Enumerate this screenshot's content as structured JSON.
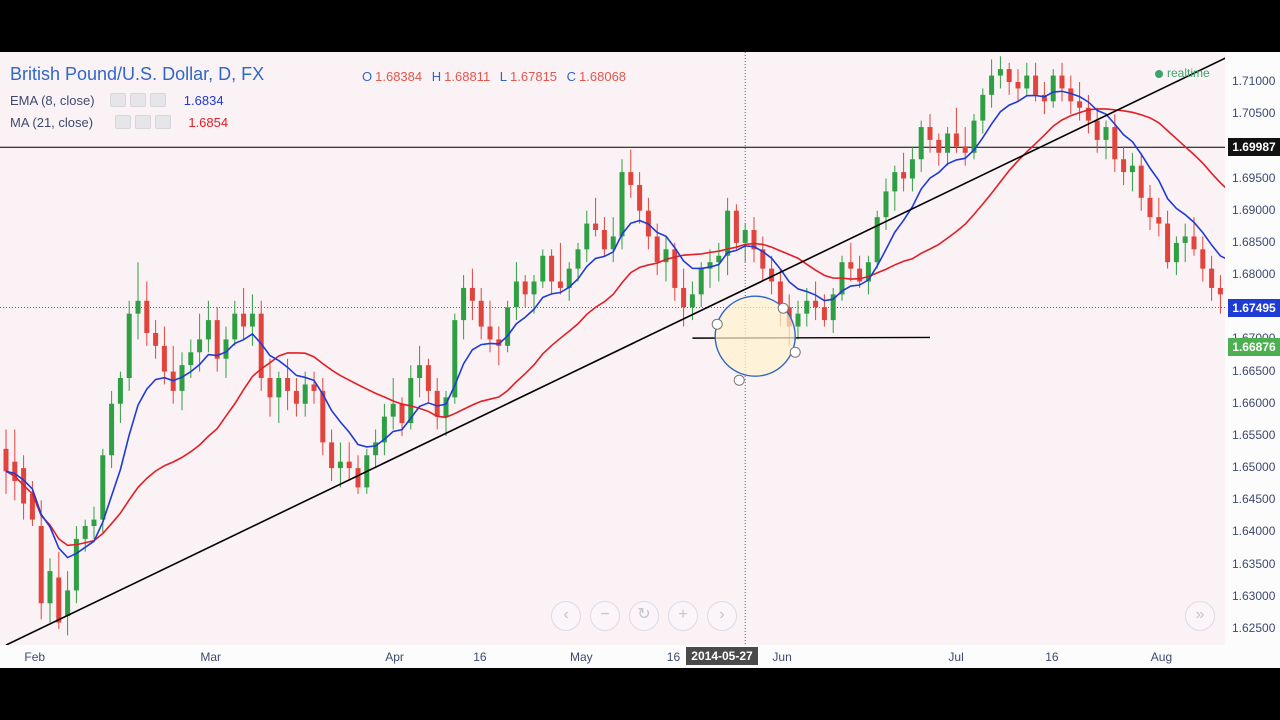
{
  "header": {
    "title": "British Pound/U.S. Dollar, D, FX",
    "ohlc": [
      {
        "key": "O",
        "value": "1.68384"
      },
      {
        "key": "H",
        "value": "1.68811"
      },
      {
        "key": "L",
        "value": "1.67815"
      },
      {
        "key": "C",
        "value": "1.68068"
      }
    ]
  },
  "indicators": [
    {
      "label": "EMA (8, close)",
      "value": "1.6834",
      "color": "#1f3bd6"
    },
    {
      "label": "MA (21, close)",
      "value": "1.6854",
      "color": "#e01f26"
    }
  ],
  "status": {
    "realtime_label": "realtime"
  },
  "price_tags": [
    {
      "label": "1.69987",
      "price": 1.69987,
      "bg": "#111111"
    },
    {
      "label": "1.67495",
      "price": 1.67495,
      "bg": "#1f3bd6"
    },
    {
      "label": "1.66876",
      "price": 1.66876,
      "bg": "#4caf50"
    }
  ],
  "cursor": {
    "date_label": "2014-05-27"
  },
  "nav_buttons": [
    {
      "name": "scroll-left-button",
      "glyph": "‹"
    },
    {
      "name": "zoom-out-button",
      "glyph": "−"
    },
    {
      "name": "reset-button",
      "glyph": "↻"
    },
    {
      "name": "zoom-in-button",
      "glyph": "+"
    },
    {
      "name": "scroll-right-button",
      "glyph": "›"
    },
    {
      "name": "go-to-realtime-button",
      "glyph": "»"
    }
  ],
  "colors": {
    "up": "#2ea043",
    "down": "#e0443c",
    "ema": "#1f3bd6",
    "ma": "#e01f26",
    "trendline": "#000000"
  },
  "chart_data": {
    "type": "candlestick",
    "ylim": [
      1.622,
      1.7135
    ],
    "y_ticks": [
      1.625,
      1.63,
      1.635,
      1.64,
      1.645,
      1.65,
      1.655,
      1.66,
      1.665,
      1.67,
      1.675,
      1.68,
      1.685,
      1.69,
      1.695,
      1.7,
      1.705,
      1.71
    ],
    "y_tick_labels": [
      "1.62500",
      "1.63000",
      "1.63500",
      "1.64000",
      "1.64500",
      "1.65000",
      "1.65500",
      "1.66000",
      "1.66500",
      "1.67000",
      "1.67500",
      "1.68000",
      "1.68500",
      "1.69000",
      "1.69500",
      "1.70000",
      "1.70500",
      "1.71000"
    ],
    "x_tick_labels": [
      {
        "label": "Feb",
        "bar": 3
      },
      {
        "label": "Mar",
        "bar": 23
      },
      {
        "label": "Apr",
        "bar": 44
      },
      {
        "label": "16",
        "bar": 54
      },
      {
        "label": "May",
        "bar": 65
      },
      {
        "label": "16",
        "bar": 76
      },
      {
        "label": "Jun",
        "bar": 88
      },
      {
        "label": "Jul",
        "bar": 108
      },
      {
        "label": "16",
        "bar": 119
      },
      {
        "label": "Aug",
        "bar": 131
      }
    ],
    "horizontal_lines": [
      1.69987,
      1.67495
    ],
    "trendline": {
      "from": {
        "bar": 0,
        "price": 1.6225
      },
      "to": {
        "bar": 139,
        "price": 1.714
      }
    },
    "drawn_segment": {
      "from": {
        "bar": 78,
        "price": 1.6702
      },
      "to": {
        "bar": 105,
        "price": 1.6703
      }
    },
    "cursor_bar": 84,
    "ohlc": [
      [
        1.653,
        1.656,
        1.646,
        1.6495
      ],
      [
        1.651,
        1.656,
        1.645,
        1.648
      ],
      [
        1.65,
        1.652,
        1.642,
        1.6445
      ],
      [
        1.646,
        1.648,
        1.641,
        1.642
      ],
      [
        1.641,
        1.645,
        1.6265,
        1.629
      ],
      [
        1.629,
        1.636,
        1.626,
        1.634
      ],
      [
        1.633,
        1.637,
        1.625,
        1.626
      ],
      [
        1.627,
        1.634,
        1.624,
        1.631
      ],
      [
        1.631,
        1.641,
        1.629,
        1.639
      ],
      [
        1.639,
        1.642,
        1.637,
        1.641
      ],
      [
        1.641,
        1.644,
        1.639,
        1.642
      ],
      [
        1.642,
        1.653,
        1.64,
        1.652
      ],
      [
        1.652,
        1.662,
        1.65,
        1.66
      ],
      [
        1.66,
        1.665,
        1.657,
        1.664
      ],
      [
        1.664,
        1.676,
        1.662,
        1.674
      ],
      [
        1.674,
        1.682,
        1.67,
        1.676
      ],
      [
        1.676,
        1.679,
        1.669,
        1.671
      ],
      [
        1.671,
        1.673,
        1.667,
        1.669
      ],
      [
        1.669,
        1.672,
        1.663,
        1.665
      ],
      [
        1.665,
        1.669,
        1.66,
        1.662
      ],
      [
        1.662,
        1.668,
        1.659,
        1.666
      ],
      [
        1.666,
        1.67,
        1.664,
        1.668
      ],
      [
        1.668,
        1.674,
        1.665,
        1.67
      ],
      [
        1.67,
        1.676,
        1.668,
        1.673
      ],
      [
        1.673,
        1.675,
        1.665,
        1.667
      ],
      [
        1.667,
        1.672,
        1.664,
        1.67
      ],
      [
        1.67,
        1.676,
        1.669,
        1.674
      ],
      [
        1.674,
        1.678,
        1.67,
        1.672
      ],
      [
        1.672,
        1.677,
        1.669,
        1.674
      ],
      [
        1.674,
        1.676,
        1.662,
        1.664
      ],
      [
        1.664,
        1.667,
        1.658,
        1.661
      ],
      [
        1.661,
        1.665,
        1.657,
        1.664
      ],
      [
        1.664,
        1.667,
        1.659,
        1.662
      ],
      [
        1.662,
        1.664,
        1.658,
        1.66
      ],
      [
        1.66,
        1.665,
        1.658,
        1.663
      ],
      [
        1.663,
        1.665,
        1.66,
        1.662
      ],
      [
        1.662,
        1.664,
        1.652,
        1.654
      ],
      [
        1.654,
        1.656,
        1.648,
        1.65
      ],
      [
        1.65,
        1.654,
        1.647,
        1.651
      ],
      [
        1.651,
        1.654,
        1.648,
        1.65
      ],
      [
        1.65,
        1.652,
        1.646,
        1.647
      ],
      [
        1.647,
        1.653,
        1.646,
        1.652
      ],
      [
        1.652,
        1.656,
        1.65,
        1.654
      ],
      [
        1.654,
        1.66,
        1.652,
        1.658
      ],
      [
        1.658,
        1.664,
        1.656,
        1.66
      ],
      [
        1.66,
        1.661,
        1.655,
        1.657
      ],
      [
        1.657,
        1.666,
        1.656,
        1.664
      ],
      [
        1.664,
        1.669,
        1.661,
        1.666
      ],
      [
        1.666,
        1.667,
        1.66,
        1.662
      ],
      [
        1.662,
        1.664,
        1.656,
        1.658
      ],
      [
        1.658,
        1.662,
        1.655,
        1.661
      ],
      [
        1.661,
        1.674,
        1.66,
        1.673
      ],
      [
        1.673,
        1.68,
        1.67,
        1.678
      ],
      [
        1.678,
        1.681,
        1.673,
        1.676
      ],
      [
        1.676,
        1.678,
        1.67,
        1.672
      ],
      [
        1.672,
        1.676,
        1.668,
        1.67
      ],
      [
        1.67,
        1.672,
        1.666,
        1.669
      ],
      [
        1.669,
        1.676,
        1.668,
        1.675
      ],
      [
        1.675,
        1.682,
        1.673,
        1.679
      ],
      [
        1.679,
        1.68,
        1.675,
        1.677
      ],
      [
        1.677,
        1.68,
        1.674,
        1.679
      ],
      [
        1.679,
        1.684,
        1.678,
        1.683
      ],
      [
        1.683,
        1.684,
        1.677,
        1.679
      ],
      [
        1.679,
        1.685,
        1.677,
        1.678
      ],
      [
        1.678,
        1.682,
        1.676,
        1.681
      ],
      [
        1.681,
        1.685,
        1.679,
        1.684
      ],
      [
        1.684,
        1.69,
        1.682,
        1.688
      ],
      [
        1.688,
        1.692,
        1.686,
        1.687
      ],
      [
        1.687,
        1.689,
        1.683,
        1.684
      ],
      [
        1.684,
        1.689,
        1.682,
        1.686
      ],
      [
        1.686,
        1.698,
        1.684,
        1.696
      ],
      [
        1.696,
        1.6995,
        1.692,
        1.694
      ],
      [
        1.694,
        1.696,
        1.688,
        1.69
      ],
      [
        1.69,
        1.692,
        1.684,
        1.686
      ],
      [
        1.686,
        1.688,
        1.68,
        1.682
      ],
      [
        1.682,
        1.686,
        1.679,
        1.684
      ],
      [
        1.684,
        1.685,
        1.676,
        1.678
      ],
      [
        1.678,
        1.681,
        1.672,
        1.675
      ],
      [
        1.675,
        1.679,
        1.673,
        1.677
      ],
      [
        1.677,
        1.682,
        1.675,
        1.681
      ],
      [
        1.681,
        1.684,
        1.678,
        1.682
      ],
      [
        1.682,
        1.685,
        1.679,
        1.683
      ],
      [
        1.683,
        1.692,
        1.68,
        1.69
      ],
      [
        1.69,
        1.691,
        1.684,
        1.685
      ],
      [
        1.685,
        1.688,
        1.682,
        1.687
      ],
      [
        1.687,
        1.689,
        1.682,
        1.684
      ],
      [
        1.684,
        1.686,
        1.679,
        1.681
      ],
      [
        1.681,
        1.683,
        1.677,
        1.679
      ],
      [
        1.679,
        1.681,
        1.672,
        1.675
      ],
      [
        1.675,
        1.677,
        1.669,
        1.672
      ],
      [
        1.672,
        1.676,
        1.67,
        1.674
      ],
      [
        1.674,
        1.678,
        1.672,
        1.676
      ],
      [
        1.676,
        1.679,
        1.673,
        1.675
      ],
      [
        1.675,
        1.677,
        1.672,
        1.673
      ],
      [
        1.673,
        1.678,
        1.671,
        1.677
      ],
      [
        1.677,
        1.683,
        1.676,
        1.682
      ],
      [
        1.682,
        1.685,
        1.679,
        1.681
      ],
      [
        1.681,
        1.683,
        1.678,
        1.679
      ],
      [
        1.679,
        1.683,
        1.677,
        1.682
      ],
      [
        1.682,
        1.69,
        1.681,
        1.689
      ],
      [
        1.689,
        1.695,
        1.687,
        1.693
      ],
      [
        1.693,
        1.697,
        1.69,
        1.696
      ],
      [
        1.696,
        1.699,
        1.693,
        1.695
      ],
      [
        1.695,
        1.7,
        1.693,
        1.698
      ],
      [
        1.698,
        1.704,
        1.696,
        1.703
      ],
      [
        1.703,
        1.705,
        1.699,
        1.701
      ],
      [
        1.701,
        1.702,
        1.697,
        1.699
      ],
      [
        1.699,
        1.703,
        1.697,
        1.702
      ],
      [
        1.702,
        1.706,
        1.699,
        1.7
      ],
      [
        1.7,
        1.703,
        1.697,
        1.699
      ],
      [
        1.699,
        1.705,
        1.698,
        1.704
      ],
      [
        1.704,
        1.709,
        1.702,
        1.708
      ],
      [
        1.708,
        1.7135,
        1.706,
        1.711
      ],
      [
        1.711,
        1.714,
        1.709,
        1.712
      ],
      [
        1.712,
        1.713,
        1.708,
        1.71
      ],
      [
        1.71,
        1.712,
        1.707,
        1.709
      ],
      [
        1.709,
        1.713,
        1.708,
        1.711
      ],
      [
        1.711,
        1.713,
        1.707,
        1.708
      ],
      [
        1.708,
        1.71,
        1.705,
        1.707
      ],
      [
        1.707,
        1.712,
        1.706,
        1.711
      ],
      [
        1.711,
        1.713,
        1.707,
        1.709
      ],
      [
        1.709,
        1.711,
        1.705,
        1.707
      ],
      [
        1.707,
        1.71,
        1.704,
        1.706
      ],
      [
        1.706,
        1.708,
        1.702,
        1.704
      ],
      [
        1.704,
        1.706,
        1.699,
        1.701
      ],
      [
        1.701,
        1.704,
        1.698,
        1.703
      ],
      [
        1.703,
        1.705,
        1.696,
        1.698
      ],
      [
        1.698,
        1.7,
        1.694,
        1.696
      ],
      [
        1.696,
        1.699,
        1.693,
        1.697
      ],
      [
        1.697,
        1.699,
        1.69,
        1.692
      ],
      [
        1.692,
        1.694,
        1.687,
        1.689
      ],
      [
        1.689,
        1.692,
        1.686,
        1.688
      ],
      [
        1.688,
        1.69,
        1.681,
        1.682
      ],
      [
        1.682,
        1.686,
        1.68,
        1.685
      ],
      [
        1.685,
        1.688,
        1.682,
        1.686
      ],
      [
        1.686,
        1.689,
        1.683,
        1.684
      ],
      [
        1.684,
        1.686,
        1.679,
        1.681
      ],
      [
        1.681,
        1.683,
        1.676,
        1.678
      ],
      [
        1.678,
        1.68,
        1.674,
        1.677
      ],
      [
        1.677,
        1.681,
        1.675,
        1.68
      ],
      [
        1.68,
        1.681,
        1.669,
        1.67
      ],
      [
        1.67,
        1.672,
        1.666,
        1.669
      ],
      [
        1.669,
        1.67,
        1.666,
        1.6688
      ]
    ]
  }
}
